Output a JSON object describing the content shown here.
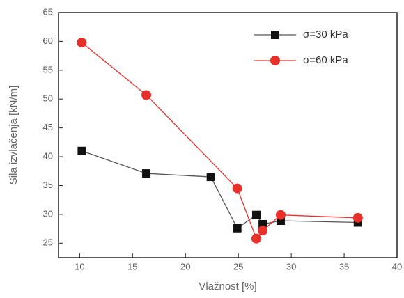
{
  "chart_data": {
    "type": "line",
    "x_label": "Vlažnost [%]",
    "y_label": "Sila izvlačenja [kN/m]",
    "xlim": [
      8,
      40
    ],
    "xticks": [
      10,
      15,
      20,
      25,
      30,
      35,
      40
    ],
    "ylim": [
      22.5,
      65
    ],
    "yticks": [
      25,
      30,
      35,
      40,
      45,
      50,
      55,
      60,
      65
    ],
    "legend": "top-right",
    "series": [
      {
        "name": "σ=30 kPa",
        "color": "#111111",
        "line_color": "#555555",
        "marker": "square",
        "x": [
          10.2,
          16.3,
          22.4,
          24.9,
          26.7,
          27.3,
          29.0,
          36.3
        ],
        "values": [
          41.0,
          37.1,
          36.5,
          27.6,
          29.9,
          28.3,
          28.9,
          28.6
        ]
      },
      {
        "name": "σ=60 kPa",
        "color": "#e8302a",
        "line_color": "#e8302a",
        "marker": "circle",
        "x": [
          10.2,
          16.3,
          24.9,
          26.7,
          27.3,
          29.0,
          36.3
        ],
        "values": [
          59.8,
          50.7,
          34.5,
          25.8,
          27.2,
          29.9,
          29.4
        ]
      }
    ]
  }
}
